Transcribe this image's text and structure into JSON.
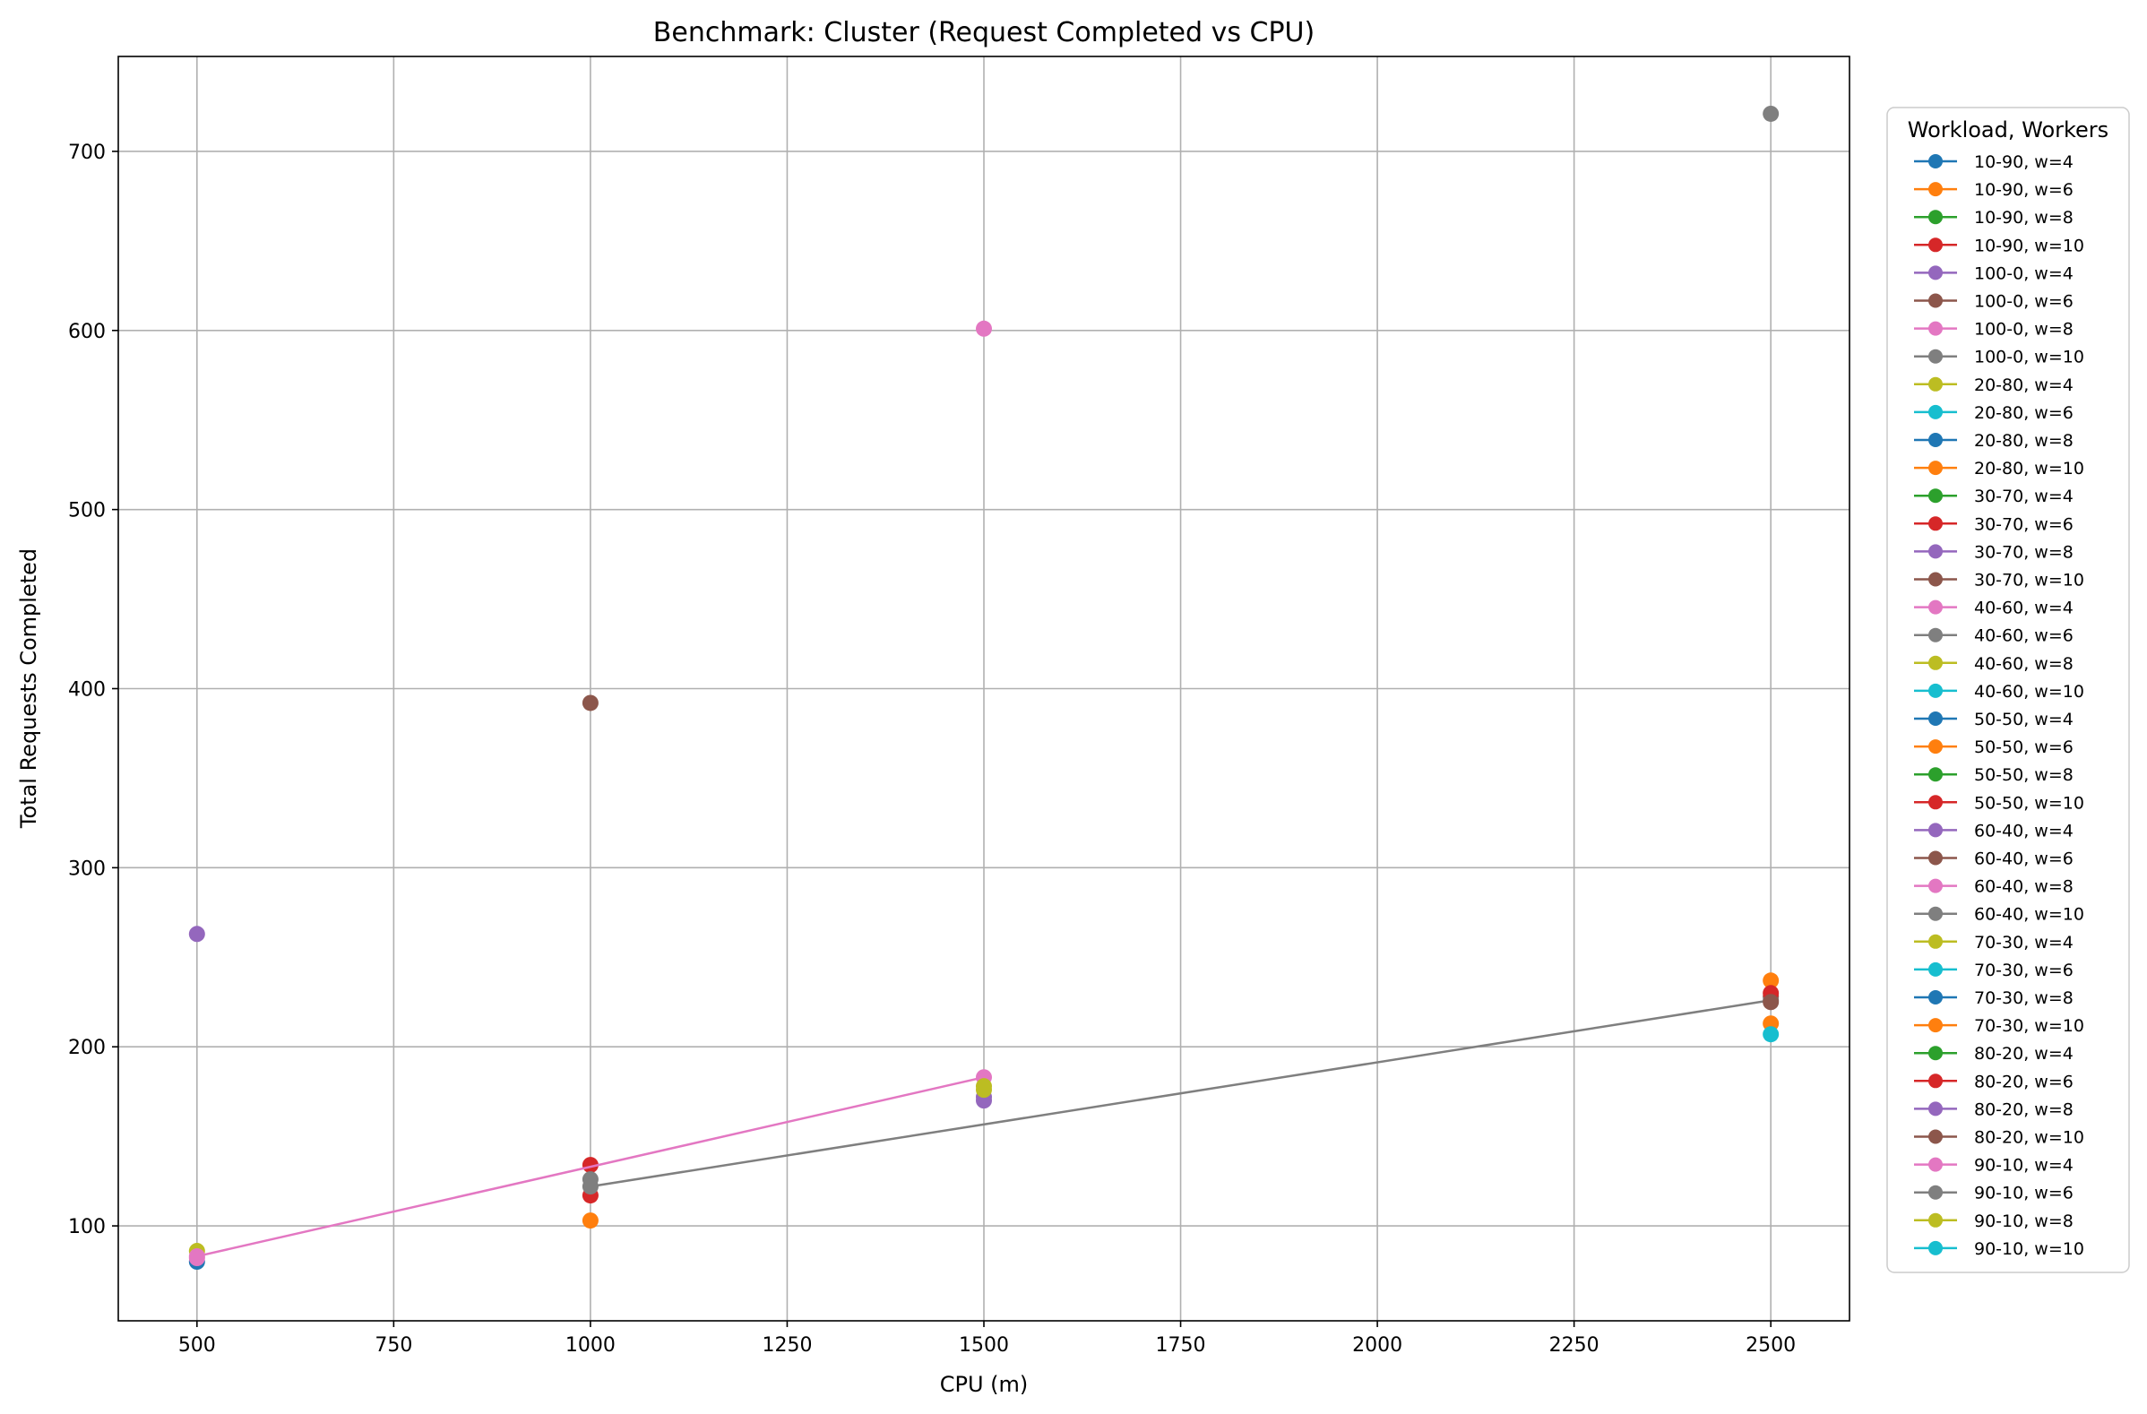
{
  "chart_data": {
    "type": "scatter",
    "title": "Benchmark: Cluster (Request Completed vs CPU)",
    "xlabel": "CPU (m)",
    "ylabel": "Total Requests Completed",
    "xlim": [
      400,
      2600
    ],
    "ylim": [
      47,
      753
    ],
    "xticks": [
      500,
      750,
      1000,
      1250,
      1500,
      1750,
      2000,
      2250,
      2500
    ],
    "yticks": [
      100,
      200,
      300,
      400,
      500,
      600,
      700
    ],
    "grid": true,
    "legend": {
      "title": "Workload, Workers",
      "placement": "right-outside"
    },
    "series": [
      {
        "name": "10-90, w=4",
        "color": "#1f77b4",
        "points": []
      },
      {
        "name": "10-90, w=6",
        "color": "#ff7f0e",
        "points": [
          [
            2500,
            237
          ]
        ]
      },
      {
        "name": "10-90, w=8",
        "color": "#2ca02c",
        "points": []
      },
      {
        "name": "10-90, w=10",
        "color": "#d62728",
        "points": [
          [
            1000,
            134
          ]
        ]
      },
      {
        "name": "100-0, w=4",
        "color": "#9467bd",
        "points": [
          [
            500,
            263
          ]
        ]
      },
      {
        "name": "100-0, w=6",
        "color": "#8c564b",
        "points": [
          [
            1000,
            392
          ]
        ]
      },
      {
        "name": "100-0, w=8",
        "color": "#e377c2",
        "points": [
          [
            1500,
            601
          ]
        ]
      },
      {
        "name": "100-0, w=10",
        "color": "#7f7f7f",
        "points": [
          [
            2500,
            721
          ]
        ]
      },
      {
        "name": "20-80, w=4",
        "color": "#bcbd22",
        "points": []
      },
      {
        "name": "20-80, w=6",
        "color": "#17becf",
        "points": []
      },
      {
        "name": "20-80, w=8",
        "color": "#1f77b4",
        "points": []
      },
      {
        "name": "20-80, w=10",
        "color": "#ff7f0e",
        "points": [
          [
            1000,
            103
          ]
        ]
      },
      {
        "name": "30-70, w=4",
        "color": "#2ca02c",
        "points": []
      },
      {
        "name": "30-70, w=6",
        "color": "#d62728",
        "points": [
          [
            1000,
            117
          ]
        ]
      },
      {
        "name": "30-70, w=8",
        "color": "#9467bd",
        "points": [
          [
            1500,
            170
          ]
        ]
      },
      {
        "name": "30-70, w=10",
        "color": "#8c564b",
        "points": []
      },
      {
        "name": "40-60, w=4",
        "color": "#e377c2",
        "points": []
      },
      {
        "name": "40-60, w=6",
        "color": "#7f7f7f",
        "points": [
          [
            1000,
            126
          ]
        ]
      },
      {
        "name": "40-60, w=8",
        "color": "#bcbd22",
        "points": [
          [
            500,
            86
          ]
        ]
      },
      {
        "name": "40-60, w=10",
        "color": "#17becf",
        "points": []
      },
      {
        "name": "50-50, w=4",
        "color": "#1f77b4",
        "points": [
          [
            500,
            80
          ]
        ]
      },
      {
        "name": "50-50, w=6",
        "color": "#ff7f0e",
        "points": [
          [
            2500,
            213
          ]
        ]
      },
      {
        "name": "50-50, w=8",
        "color": "#2ca02c",
        "points": []
      },
      {
        "name": "50-50, w=10",
        "color": "#d62728",
        "points": []
      },
      {
        "name": "60-40, w=4",
        "color": "#9467bd",
        "points": [
          [
            1500,
            172
          ]
        ]
      },
      {
        "name": "60-40, w=6",
        "color": "#8c564b",
        "points": [
          [
            2500,
            228
          ]
        ]
      },
      {
        "name": "60-40, w=8",
        "color": "#e377c2",
        "points": [
          [
            1500,
            183
          ],
          [
            500,
            83
          ]
        ]
      },
      {
        "name": "60-40, w=10",
        "color": "#7f7f7f",
        "points": [
          [
            1000,
            122
          ],
          [
            2500,
            226
          ]
        ]
      },
      {
        "name": "70-30, w=4",
        "color": "#bcbd22",
        "points": [
          [
            1500,
            178
          ]
        ]
      },
      {
        "name": "70-30, w=6",
        "color": "#17becf",
        "points": [
          [
            2500,
            207
          ]
        ]
      },
      {
        "name": "70-30, w=8",
        "color": "#1f77b4",
        "points": []
      },
      {
        "name": "70-30, w=10",
        "color": "#ff7f0e",
        "points": []
      },
      {
        "name": "80-20, w=4",
        "color": "#2ca02c",
        "points": []
      },
      {
        "name": "80-20, w=6",
        "color": "#d62728",
        "points": [
          [
            2500,
            230
          ]
        ]
      },
      {
        "name": "80-20, w=8",
        "color": "#9467bd",
        "points": []
      },
      {
        "name": "80-20, w=10",
        "color": "#8c564b",
        "points": [
          [
            2500,
            225
          ]
        ]
      },
      {
        "name": "90-10, w=4",
        "color": "#e377c2",
        "points": [
          [
            500,
            82
          ]
        ]
      },
      {
        "name": "90-10, w=6",
        "color": "#7f7f7f",
        "points": []
      },
      {
        "name": "90-10, w=8",
        "color": "#bcbd22",
        "points": [
          [
            1500,
            176
          ]
        ]
      },
      {
        "name": "90-10, w=10",
        "color": "#17becf",
        "points": []
      }
    ]
  }
}
